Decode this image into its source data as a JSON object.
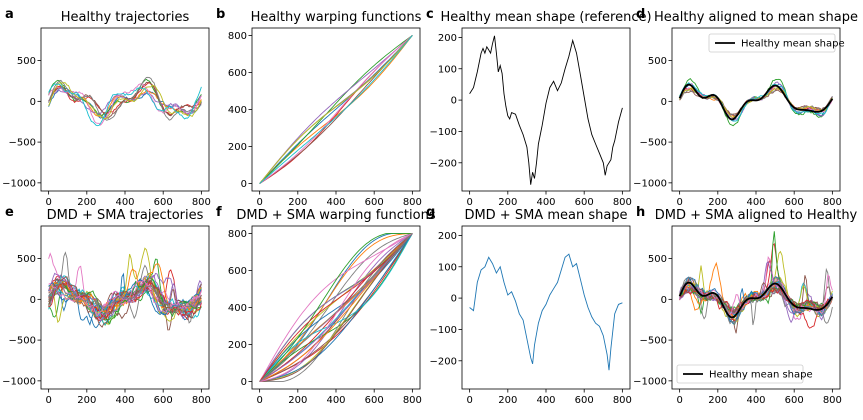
{
  "chart_data": [
    {
      "id": "a",
      "letter": "a",
      "type": "line",
      "title": "Healthy trajectories",
      "xlim": [
        -40,
        840
      ],
      "ylim": [
        -1100,
        900
      ],
      "xticks": [
        0,
        200,
        400,
        600,
        800
      ],
      "yticks": [
        -1000,
        -500,
        0,
        500
      ],
      "series_count": 10,
      "series_kind": "healthy_trajectories"
    },
    {
      "id": "b",
      "letter": "b",
      "type": "line",
      "title": "Healthy warping functions",
      "xlim": [
        -40,
        840
      ],
      "ylim": [
        -40,
        840
      ],
      "xticks": [
        0,
        200,
        400,
        600,
        800
      ],
      "yticks": [
        0,
        200,
        400,
        600,
        800
      ],
      "series_count": 10,
      "series_kind": "healthy_warps"
    },
    {
      "id": "c",
      "letter": "c",
      "type": "line",
      "title": "Healthy mean shape (reference)",
      "xlim": [
        -40,
        840
      ],
      "ylim": [
        -290,
        230
      ],
      "xticks": [
        0,
        200,
        400,
        600,
        800
      ],
      "yticks": [
        -200,
        -100,
        0,
        100,
        200
      ],
      "series": [
        {
          "color": "#000000",
          "x": [
            0,
            20,
            40,
            60,
            70,
            80,
            90,
            100,
            110,
            120,
            130,
            140,
            150,
            160,
            170,
            180,
            190,
            200,
            210,
            220,
            240,
            260,
            280,
            300,
            310,
            320,
            330,
            340,
            350,
            360,
            370,
            380,
            400,
            420,
            440,
            460,
            480,
            500,
            520,
            540,
            560,
            580,
            600,
            620,
            640,
            660,
            680,
            700,
            710,
            720,
            730,
            740,
            750,
            760,
            780,
            800
          ],
          "y": [
            20,
            40,
            90,
            150,
            165,
            150,
            170,
            160,
            150,
            180,
            205,
            150,
            90,
            110,
            85,
            20,
            -20,
            -50,
            -60,
            -40,
            -45,
            -80,
            -110,
            -150,
            -200,
            -270,
            -230,
            -250,
            -200,
            -140,
            -110,
            -80,
            -10,
            40,
            60,
            30,
            55,
            100,
            140,
            190,
            150,
            80,
            10,
            -60,
            -110,
            -140,
            -170,
            -200,
            -240,
            -210,
            -200,
            -190,
            -150,
            -130,
            -70,
            -25
          ]
        }
      ]
    },
    {
      "id": "d",
      "letter": "d",
      "type": "line",
      "title": "Healthy aligned to mean shape",
      "xlim": [
        -40,
        840
      ],
      "ylim": [
        -1100,
        900
      ],
      "xticks": [
        0,
        200,
        400,
        600,
        800
      ],
      "yticks": [
        -1000,
        -500,
        0,
        500
      ],
      "series_count": 10,
      "series_kind": "healthy_aligned",
      "legend": {
        "label": "Healthy mean shape",
        "placement": "top-right"
      }
    },
    {
      "id": "e",
      "letter": "e",
      "type": "line",
      "title": "DMD + SMA trajectories",
      "xlim": [
        -40,
        840
      ],
      "ylim": [
        -1100,
        900
      ],
      "xticks": [
        0,
        200,
        400,
        600,
        800
      ],
      "yticks": [
        -1000,
        -500,
        0,
        500
      ],
      "series_count": 28,
      "series_kind": "dmd_trajectories"
    },
    {
      "id": "f",
      "letter": "f",
      "type": "line",
      "title": "DMD + SMA warping functions",
      "xlim": [
        -40,
        840
      ],
      "ylim": [
        -40,
        840
      ],
      "xticks": [
        0,
        200,
        400,
        600,
        800
      ],
      "yticks": [
        0,
        200,
        400,
        600,
        800
      ],
      "series_count": 28,
      "series_kind": "dmd_warps"
    },
    {
      "id": "g",
      "letter": "g",
      "type": "line",
      "title": "DMD + SMA mean shape",
      "xlim": [
        -40,
        840
      ],
      "ylim": [
        -290,
        230
      ],
      "xticks": [
        0,
        200,
        400,
        600,
        800
      ],
      "yticks": [
        -200,
        -100,
        0,
        100,
        200
      ],
      "series": [
        {
          "color": "#1f77b4",
          "x": [
            0,
            20,
            40,
            60,
            80,
            100,
            120,
            140,
            160,
            180,
            200,
            220,
            240,
            260,
            280,
            300,
            320,
            330,
            340,
            360,
            380,
            400,
            420,
            440,
            460,
            480,
            500,
            520,
            540,
            560,
            580,
            600,
            620,
            640,
            660,
            680,
            700,
            720,
            730,
            740,
            760,
            780,
            800
          ],
          "y": [
            -30,
            -40,
            50,
            90,
            100,
            130,
            110,
            80,
            100,
            50,
            10,
            20,
            -10,
            -50,
            -70,
            -130,
            -190,
            -210,
            -150,
            -80,
            -40,
            -20,
            10,
            30,
            50,
            90,
            130,
            140,
            100,
            110,
            60,
            10,
            -30,
            -60,
            -80,
            -90,
            -120,
            -180,
            -230,
            -160,
            -50,
            -20,
            -15
          ]
        }
      ]
    },
    {
      "id": "h",
      "letter": "h",
      "type": "line",
      "title": "DMD + SMA aligned to Healthy",
      "xlim": [
        -40,
        840
      ],
      "ylim": [
        -1100,
        900
      ],
      "xticks": [
        0,
        200,
        400,
        600,
        800
      ],
      "yticks": [
        -1000,
        -500,
        0,
        500
      ],
      "series_count": 28,
      "series_kind": "dmd_aligned",
      "legend": {
        "label": "Healthy mean shape",
        "placement": "bottom-left"
      }
    }
  ],
  "palette": [
    "#1f77b4",
    "#ff7f0e",
    "#2ca02c",
    "#d62728",
    "#9467bd",
    "#8c564b",
    "#e377c2",
    "#7f7f7f",
    "#bcbd22",
    "#17becf"
  ]
}
